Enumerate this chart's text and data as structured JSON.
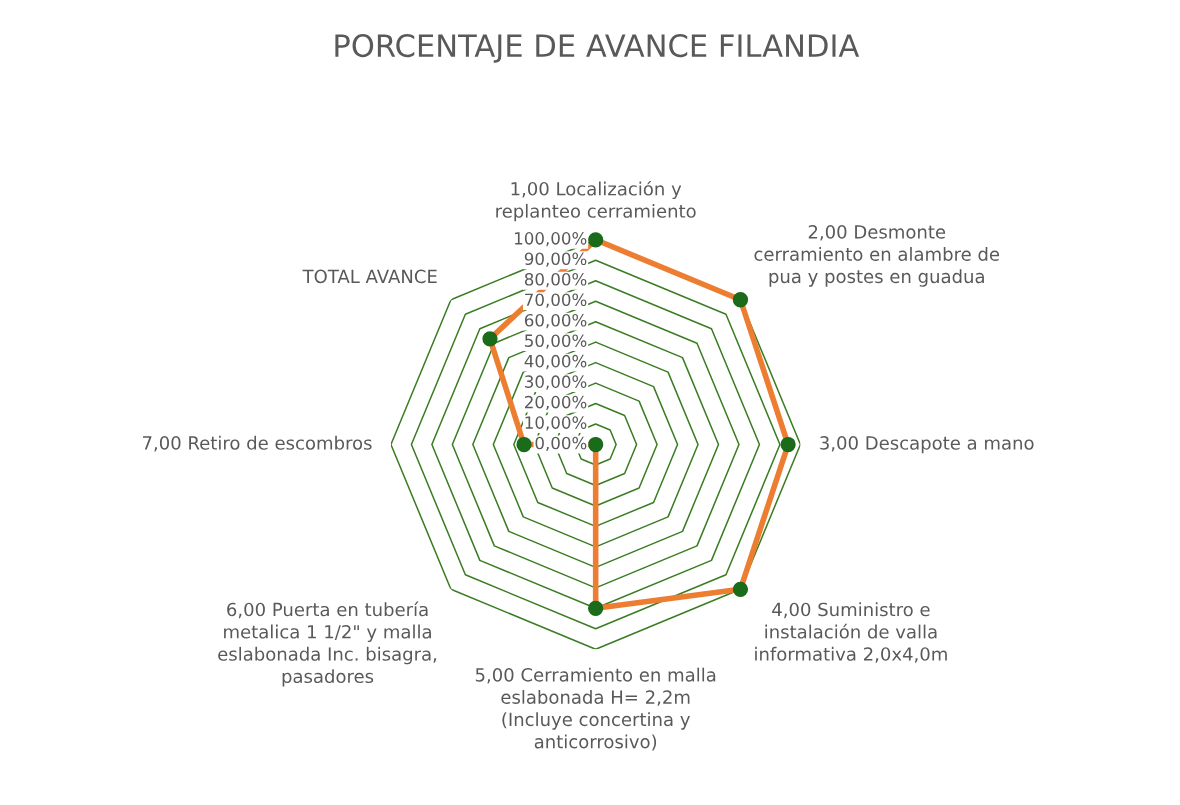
{
  "chart_data": {
    "type": "radar",
    "title": "PORCENTAJE DE AVANCE FILANDIA",
    "categories": [
      "1,00 Localización y\nreplanteo cerramiento",
      "2,00 Desmonte\ncerramiento en alambre de\npua y postes en guadua",
      "3,00 Descapote a mano",
      "4,00 Suministro e\ninstalación de valla\ninformativa 2,0x4,0m",
      "5,00 Cerramiento en malla\neslabonada H= 2,2m\n(Incluye concertina y\nanticorrosivo)",
      "6,00 Puerta en tubería\nmetalica 1 1/2\" y malla\neslabonada Inc. bisagra,\npasadores",
      "7,00 Retiro de escombros",
      "TOTAL AVANCE"
    ],
    "series": [
      {
        "color": "#ed7d31",
        "values": [
          100,
          100,
          94,
          100,
          80,
          0,
          35,
          73
        ]
      }
    ],
    "ylim": [
      0,
      100
    ],
    "yticks": [
      {
        "value": 0,
        "label": "0,00%"
      },
      {
        "value": 10,
        "label": "10,00%"
      },
      {
        "value": 20,
        "label": "20,00%"
      },
      {
        "value": 30,
        "label": "30,00%"
      },
      {
        "value": 40,
        "label": "40,00%"
      },
      {
        "value": 50,
        "label": "50,00%"
      },
      {
        "value": 60,
        "label": "60,00%"
      },
      {
        "value": 70,
        "label": "70,00%"
      },
      {
        "value": 80,
        "label": "80,00%"
      },
      {
        "value": 90,
        "label": "90,00%"
      },
      {
        "value": 100,
        "label": "100,00%"
      }
    ],
    "grid": true,
    "marker": "circle"
  }
}
